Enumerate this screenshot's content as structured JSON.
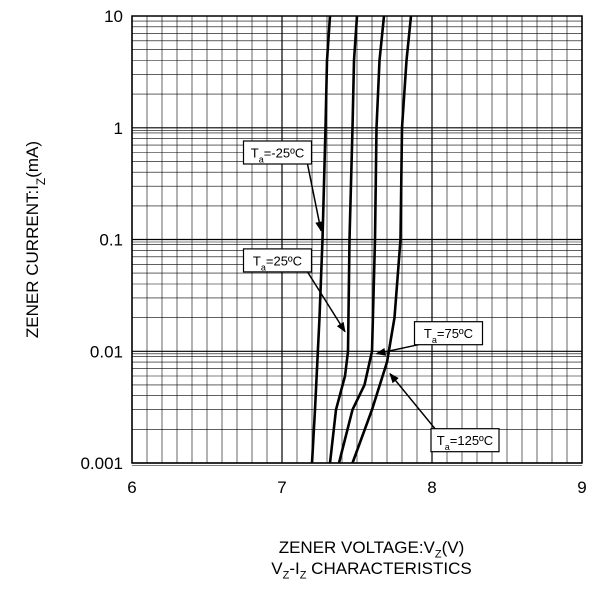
{
  "chart_data": {
    "type": "line",
    "title": "",
    "subtitle": "V_Z-I_Z CHARACTERISTICS",
    "subtitle_parts": [
      "V",
      "Z",
      "-I",
      "Z",
      " CHARACTERISTICS"
    ],
    "xlabel": "ZENER VOLTAGE:V_Z(V)",
    "xlabel_parts": [
      "ZENER VOLTAGE:V",
      "Z",
      "(V)"
    ],
    "ylabel": "ZENER CURRENT:I_Z(mA)",
    "ylabel_parts": [
      "ZENER CURRENT:I",
      "Z",
      "(mA)"
    ],
    "xlim": [
      6,
      9
    ],
    "ylim": [
      0.001,
      10
    ],
    "yscale": "log",
    "grid": true,
    "legend": "none",
    "x_ticks": [
      "6",
      "7",
      "8",
      "9"
    ],
    "y_ticks": [
      "0.001",
      "0.01",
      "0.1",
      "1",
      "10"
    ],
    "series": [
      {
        "name": "Ta=-25ºC",
        "label_parts": [
          "T",
          "a",
          "=-25ºC"
        ],
        "points": [
          [
            7.2,
            0.001
          ],
          [
            7.22,
            0.003
          ],
          [
            7.25,
            0.02
          ],
          [
            7.27,
            0.1
          ],
          [
            7.29,
            1
          ],
          [
            7.3,
            4
          ],
          [
            7.32,
            10
          ]
        ]
      },
      {
        "name": "Ta=25ºC",
        "label_parts": [
          "T",
          "a",
          "=25ºC"
        ],
        "points": [
          [
            7.32,
            0.001
          ],
          [
            7.36,
            0.003
          ],
          [
            7.42,
            0.006
          ],
          [
            7.44,
            0.01
          ],
          [
            7.45,
            0.1
          ],
          [
            7.47,
            1
          ],
          [
            7.48,
            4
          ],
          [
            7.5,
            10
          ]
        ]
      },
      {
        "name": "Ta=75ºC",
        "label_parts": [
          "T",
          "a",
          "=75ºC"
        ],
        "points": [
          [
            7.38,
            0.001
          ],
          [
            7.47,
            0.003
          ],
          [
            7.55,
            0.005
          ],
          [
            7.6,
            0.01
          ],
          [
            7.62,
            0.1
          ],
          [
            7.63,
            1
          ],
          [
            7.65,
            4
          ],
          [
            7.68,
            10
          ]
        ]
      },
      {
        "name": "Ta=125ºC",
        "label_parts": [
          "T",
          "a",
          "=125ºC"
        ],
        "points": [
          [
            7.47,
            0.001
          ],
          [
            7.6,
            0.003
          ],
          [
            7.7,
            0.008
          ],
          [
            7.75,
            0.02
          ],
          [
            7.79,
            0.1
          ],
          [
            7.8,
            1
          ],
          [
            7.83,
            4
          ],
          [
            7.86,
            10
          ]
        ]
      }
    ],
    "annotations": [
      {
        "series": 0,
        "box_at": [
          6.97,
          0.6
        ],
        "arrow_to": [
          7.26,
          0.12
        ]
      },
      {
        "series": 1,
        "box_at": [
          6.97,
          0.065
        ],
        "arrow_to": [
          7.42,
          0.015
        ]
      },
      {
        "series": 2,
        "box_at": [
          8.11,
          0.0145
        ],
        "arrow_to": [
          7.63,
          0.0095
        ]
      },
      {
        "series": 3,
        "box_at": [
          8.22,
          0.0016
        ],
        "arrow_to": [
          7.72,
          0.0063
        ]
      }
    ],
    "colors": {
      "line": "#000000",
      "grid": "#000000",
      "background": "#ffffff"
    }
  }
}
